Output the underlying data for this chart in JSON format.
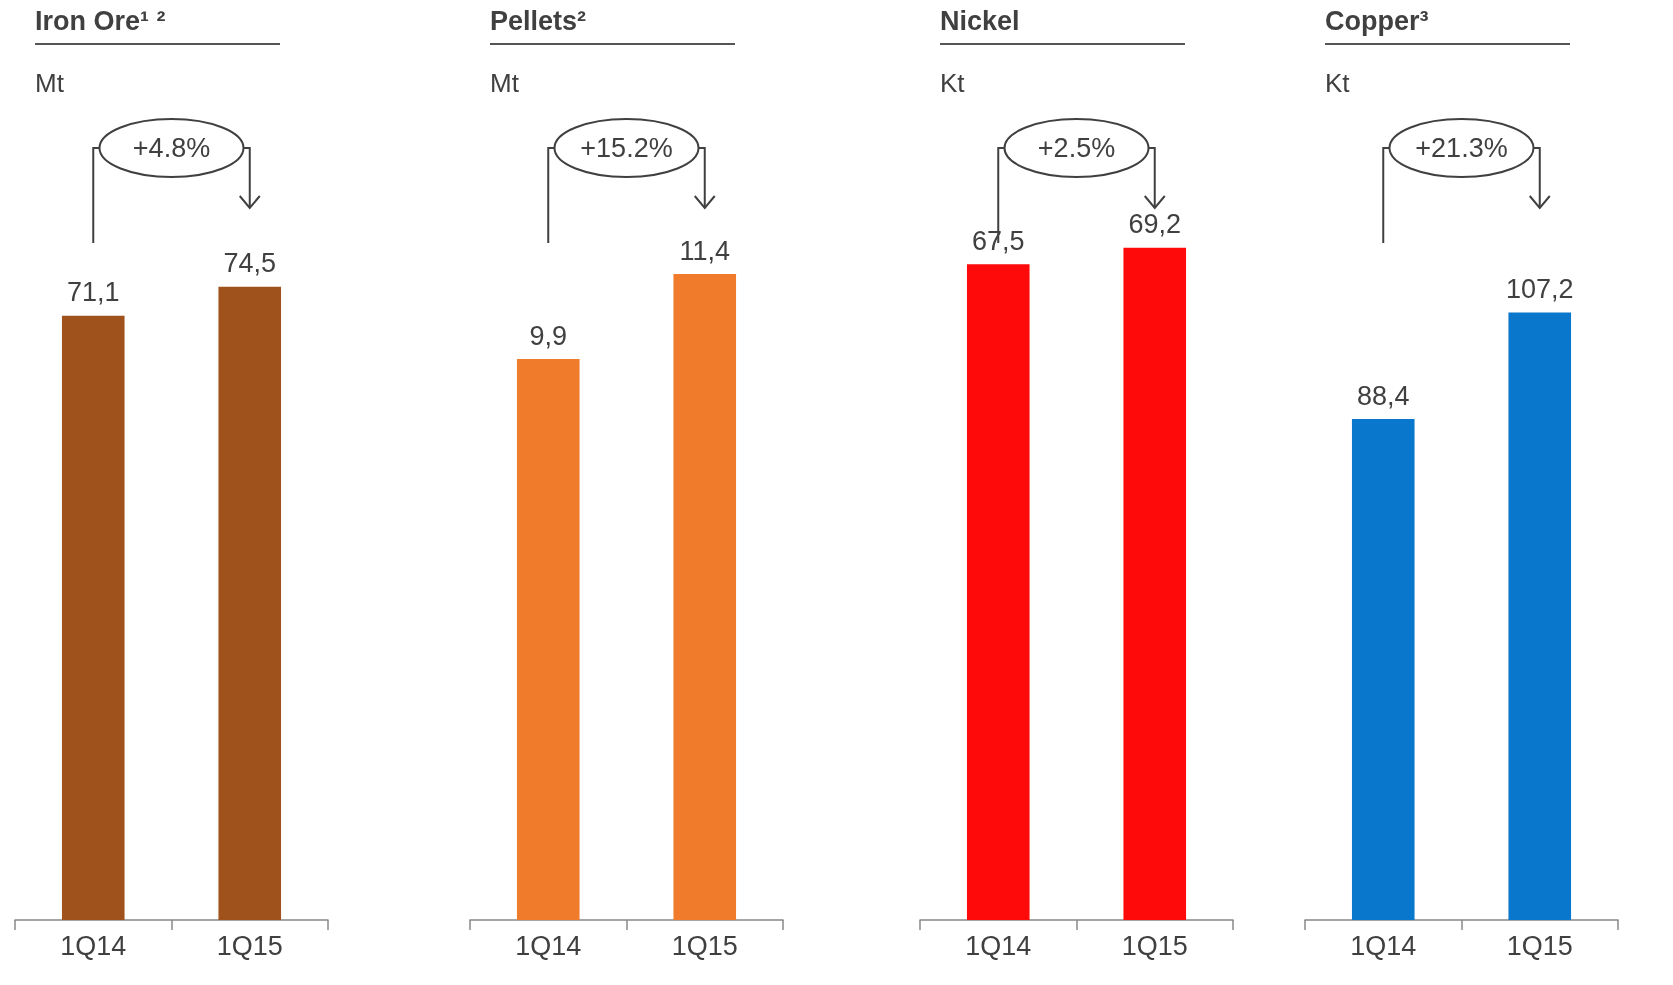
{
  "chart_data": [
    {
      "type": "bar",
      "title": "Iron Ore¹ ²",
      "ylabel": "Mt",
      "categories": [
        "1Q14",
        "1Q15"
      ],
      "values": [
        71.1,
        74.5
      ],
      "value_labels": [
        "71,1",
        "74,5"
      ],
      "color": "#a0521c",
      "annotations": [
        "+4.8%"
      ]
    },
    {
      "type": "bar",
      "title": "Pellets²",
      "ylabel": "Mt",
      "categories": [
        "1Q14",
        "1Q15"
      ],
      "values": [
        9.9,
        11.4
      ],
      "value_labels": [
        "9,9",
        "11,4"
      ],
      "color": "#f07b2a",
      "annotations": [
        "+15.2%"
      ]
    },
    {
      "type": "bar",
      "title": "Nickel",
      "ylabel": "Kt",
      "categories": [
        "1Q14",
        "1Q15"
      ],
      "values": [
        67.5,
        69.2
      ],
      "value_labels": [
        "67,5",
        "69,2"
      ],
      "color": "#ff0a0a",
      "annotations": [
        "+2.5%"
      ]
    },
    {
      "type": "bar",
      "title": "Copper³",
      "ylabel": "Kt",
      "categories": [
        "1Q14",
        "1Q15"
      ],
      "values": [
        88.4,
        107.2
      ],
      "value_labels": [
        "88,4",
        "107,2"
      ],
      "color": "#0877cc",
      "annotations": [
        "+21.3%"
      ]
    }
  ]
}
